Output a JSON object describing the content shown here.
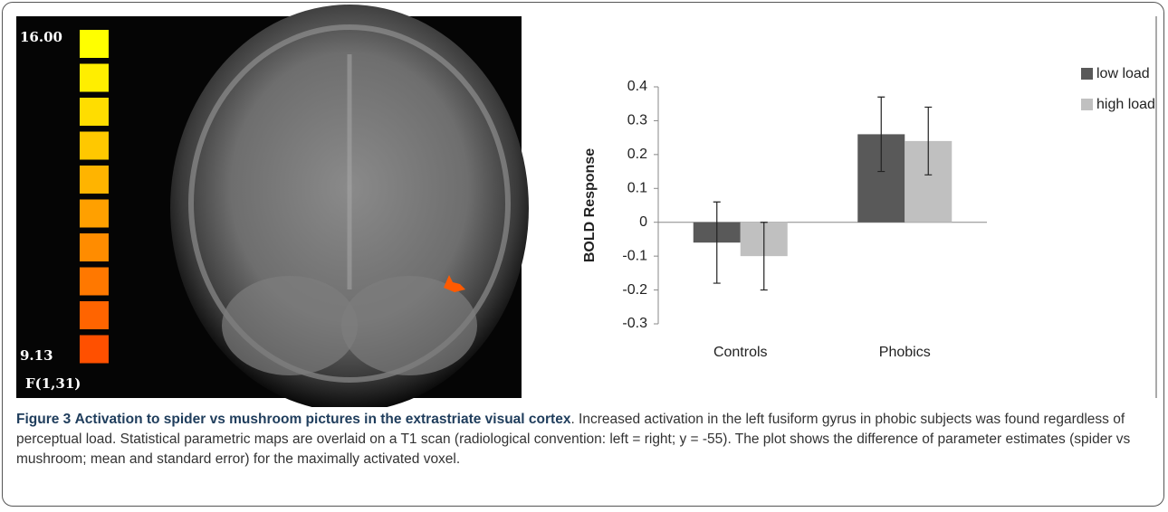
{
  "colorbar": {
    "max_label": "16.00",
    "min_label": "9.13",
    "stat_label": "F(1,31)"
  },
  "chart_data": {
    "type": "bar",
    "categories": [
      "Controls",
      "Phobics"
    ],
    "series": [
      {
        "name": "low load",
        "color": "#595959",
        "values": [
          -0.06,
          0.26
        ],
        "errors": [
          0.12,
          0.11
        ]
      },
      {
        "name": "high load",
        "color": "#c0c0c0",
        "values": [
          -0.1,
          0.24
        ],
        "errors": [
          0.1,
          0.1
        ]
      }
    ],
    "y_label": "BOLD Response",
    "ylim": [
      -0.3,
      0.4
    ],
    "yticks": [
      0.4,
      0.3,
      0.2,
      0.1,
      0,
      -0.1,
      -0.2,
      -0.3
    ],
    "legend": "upper right"
  },
  "caption": {
    "label": "Figure 3",
    "title": "Activation to spider vs mushroom pictures in the extrastriate visual cortex",
    "text": ". Increased activation in the left fusiform gyrus in phobic subjects was found regardless of perceptual load. Statistical parametric maps are overlaid on a T1 scan (radiological convention: left = right; y = -55). The plot shows the difference of parameter estimates (spider vs mushroom; mean and standard error) for the maximally activated voxel."
  }
}
